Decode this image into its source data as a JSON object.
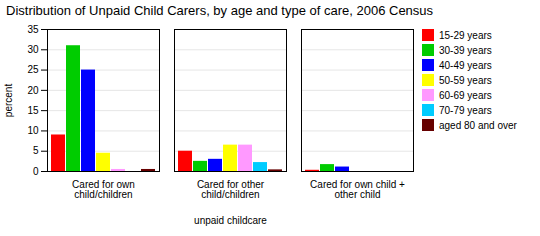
{
  "chart_data": {
    "type": "bar",
    "title": "Distribution of Unpaid Child Carers, by age and type of care, 2006 Census",
    "xlabel": "unpaid childcare",
    "ylabel": "percent",
    "categories": [
      "Cared for own child/children",
      "Cared for other child/children",
      "Cared for own child + other child"
    ],
    "series": [
      {
        "name": "15-29 years",
        "color": "#ff0000",
        "values": [
          9.0,
          5.0,
          0.3
        ]
      },
      {
        "name": "30-39 years",
        "color": "#00cc00",
        "values": [
          31.0,
          2.5,
          1.7
        ]
      },
      {
        "name": "40-49 years",
        "color": "#0000ff",
        "values": [
          25.0,
          3.0,
          1.1
        ]
      },
      {
        "name": "50-59 years",
        "color": "#ffff00",
        "values": [
          4.5,
          6.5,
          0.0
        ]
      },
      {
        "name": "60-69 years",
        "color": "#ff99ff",
        "values": [
          0.5,
          6.5,
          0.0
        ]
      },
      {
        "name": "70-79 years",
        "color": "#00ccff",
        "values": [
          0.0,
          2.2,
          0.0
        ]
      },
      {
        "name": "aged 80 and over",
        "color": "#660000",
        "values": [
          0.5,
          0.4,
          0.0
        ]
      }
    ],
    "ylim": [
      0,
      35
    ],
    "yticks": [
      0,
      5,
      10,
      15,
      20,
      25,
      30,
      35
    ],
    "grid": true,
    "legend": "right"
  }
}
